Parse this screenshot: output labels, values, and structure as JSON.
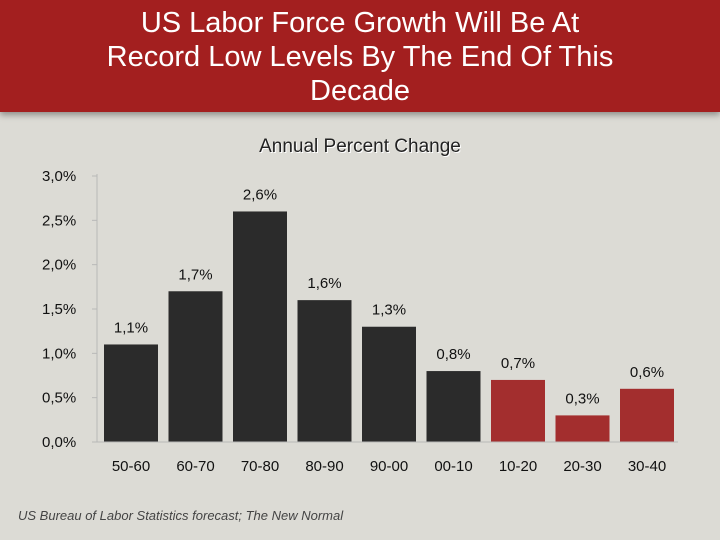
{
  "title": "US Labor Force Growth Will Be At\nRecord Low Levels By The End Of This\nDecade",
  "source": "US Bureau of Labor Statistics forecast; The New Normal",
  "colors": {
    "title_band": "#a31f1f",
    "background": "#dcdbd5",
    "bar_historical": "#2b2b2b",
    "bar_forecast": "#a32e2e"
  },
  "chart_data": {
    "type": "bar",
    "title": "Annual Percent Change",
    "xlabel": "",
    "ylabel": "",
    "ylim": [
      0,
      3
    ],
    "yticks": [
      "0,0%",
      "0,5%",
      "1,0%",
      "1,5%",
      "2,0%",
      "2,5%",
      "3,0%"
    ],
    "categories": [
      "50-60",
      "60-70",
      "70-80",
      "80-90",
      "90-00",
      "00-10",
      "10-20",
      "20-30",
      "30-40"
    ],
    "values": [
      1.1,
      1.7,
      2.6,
      1.6,
      1.3,
      0.8,
      0.7,
      0.3,
      0.6
    ],
    "data_labels": [
      "1,1%",
      "1,7%",
      "2,6%",
      "1,6%",
      "1,3%",
      "0,8%",
      "0,7%",
      "0,3%",
      "0,6%"
    ],
    "forecast": [
      false,
      false,
      false,
      false,
      false,
      false,
      true,
      true,
      true
    ],
    "grid": false,
    "legend": "none"
  }
}
